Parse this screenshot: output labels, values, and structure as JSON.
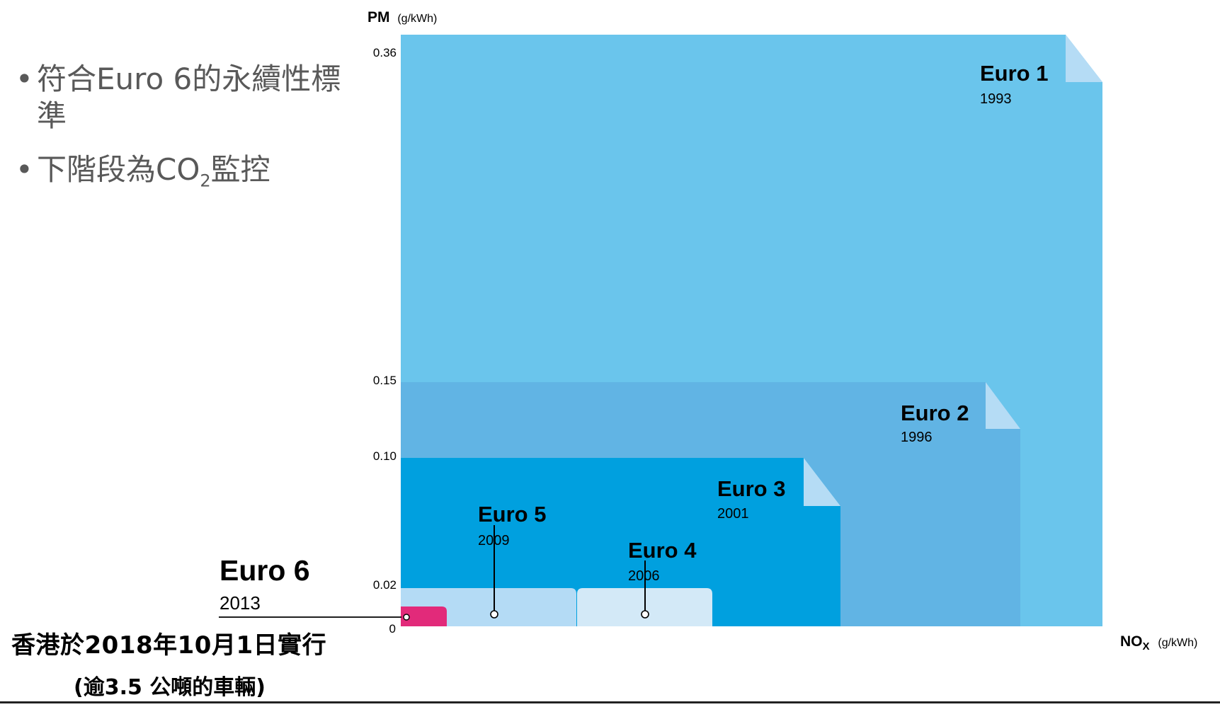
{
  "bullets": [
    {
      "text": "符合Euro 6的永續性標準"
    },
    {
      "text_pre": "下階段為CO",
      "text_sub": "2",
      "text_post": "監控"
    }
  ],
  "footer": {
    "line1": "香港於2018年10月1日實行",
    "line2": "(逾3.5 公噸的車輛)"
  },
  "chart_data": {
    "type": "area",
    "y_axis": {
      "label": "PM",
      "unit": "(g/kWh)",
      "ticks": [
        "0.36",
        "0.15",
        "0.10",
        "0.02",
        "0"
      ]
    },
    "x_axis": {
      "label": "NO",
      "label_sub": "X",
      "unit": "(g/kWh)"
    },
    "series": [
      {
        "name": "Euro 1",
        "year": "1993",
        "pm": 0.36,
        "color": "#6ac5ec"
      },
      {
        "name": "Euro 2",
        "year": "1996",
        "pm": 0.15,
        "color": "#61b4e4"
      },
      {
        "name": "Euro 3",
        "year": "2001",
        "pm": 0.1,
        "color": "#00a0df"
      },
      {
        "name": "Euro 4",
        "year": "2006",
        "pm": 0.02,
        "color": "#d3e9f7"
      },
      {
        "name": "Euro 5",
        "year": "2009",
        "pm": 0.02,
        "color": "#b4dbf5"
      },
      {
        "name": "Euro 6",
        "year": "2013",
        "pm": 0.01,
        "color": "#e22a7a"
      }
    ],
    "fold_color": "#b5dcf5"
  }
}
